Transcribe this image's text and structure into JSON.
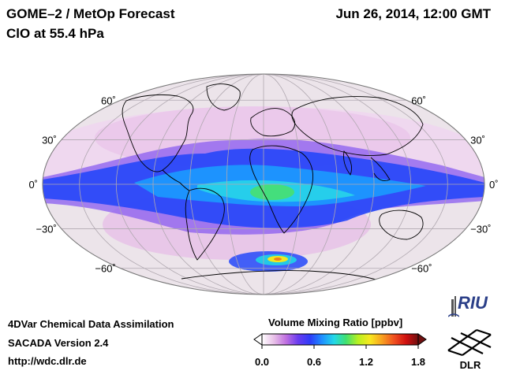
{
  "header": {
    "title_line1": "GOME–2 / MetOp Forecast",
    "title_line2": "ClO at 55.4 hPa",
    "datetime": "Jun 26, 2014, 12:00 GMT"
  },
  "footer": {
    "line1": "4DVar Chemical Data Assimilation",
    "line2": "SACADA Version 2.4",
    "line3": "http://wdc.dlr.de"
  },
  "colorbar": {
    "title": "Volume Mixing Ratio [ppbv]",
    "ticks": [
      "0.0",
      "0.6",
      "1.2",
      "1.8"
    ],
    "tick_values": [
      0.0,
      0.6,
      1.2,
      1.8
    ],
    "range": [
      0.0,
      1.8
    ],
    "colors": [
      "#ffffff",
      "#e8c0e8",
      "#c070e0",
      "#6a3cf0",
      "#2e3cf8",
      "#1e90ff",
      "#22d8e8",
      "#40e070",
      "#b8f020",
      "#f8e820",
      "#f8a020",
      "#f05020",
      "#d01010",
      "#701010"
    ]
  },
  "map": {
    "projection": "Mollweide",
    "latitude_labels_left": [
      "60˚",
      "30˚",
      "0˚",
      "−30˚",
      "−60˚"
    ],
    "latitude_labels_right": [
      "60˚",
      "30˚",
      "0˚",
      "−30˚",
      "−60˚"
    ],
    "latitude_values": [
      60,
      30,
      0,
      -30,
      -60
    ],
    "ocean_color": "#ece4ea",
    "grid_color": "#b0a8b0"
  },
  "logos": {
    "riu_text": "RIU",
    "dlr_text": "DLR"
  }
}
